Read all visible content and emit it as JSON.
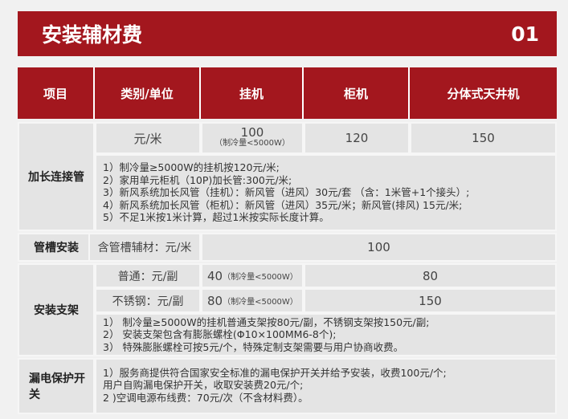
{
  "title": "安装辅材费",
  "page_number": "01",
  "headers": [
    "项目",
    "类别/单位",
    "挂机",
    "柜机",
    "分体式天井机"
  ],
  "extension": {
    "label": "加长连接管",
    "unit": "元/米",
    "wall": "100",
    "wall_note": "（制冷量<5000W）",
    "cabinet": "120",
    "ceiling": "150",
    "notes": [
      "1）制冷量≥5000W的挂机按120元/米;",
      "2）家用单元柜机（10P)加长管:300元/米;",
      "3）新风系统加长风管（挂机）：新风管（进风）30元/套 （含：1米管+1个接头）;",
      "4）新风系统加长风管（柜机）：新风管（进风）35元/米；新风管(排风) 15元/米;",
      "5）不足1米按1米计算，超过1米按实际长度计算。"
    ]
  },
  "trunking": {
    "label": "管槽安装",
    "unit": "含管槽辅材：元/米",
    "value": "100"
  },
  "bracket": {
    "label": "安装支架",
    "rows": [
      {
        "unit": "普通：元/副",
        "wall": "40",
        "wall_note": "（制冷量<5000W）",
        "other": "80"
      },
      {
        "unit": "不锈钢：元/副",
        "wall": "80",
        "wall_note": "（制冷量<5000W）",
        "other": "150"
      }
    ],
    "notes": [
      "1） 制冷量≥5000W的挂机普通支架按80元/副，不锈钢支架按150元/副;",
      "2） 安装支架包含有膨胀螺栓(Φ10×100MM6-8个);",
      "3） 特殊膨胀螺栓可按5元/个，特殊定制支架需要与用户协商收费。"
    ]
  },
  "leakage": {
    "label": "漏电保护开关",
    "notes": [
      "1）服务商提供符合国家安全标准的漏电保护开关并给予安装，收费100元/个;",
      "用户自购漏电保护开关，收取安装费20元/个;",
      "2 )空调电源布线费：70元/次（不含材料费）。"
    ]
  }
}
